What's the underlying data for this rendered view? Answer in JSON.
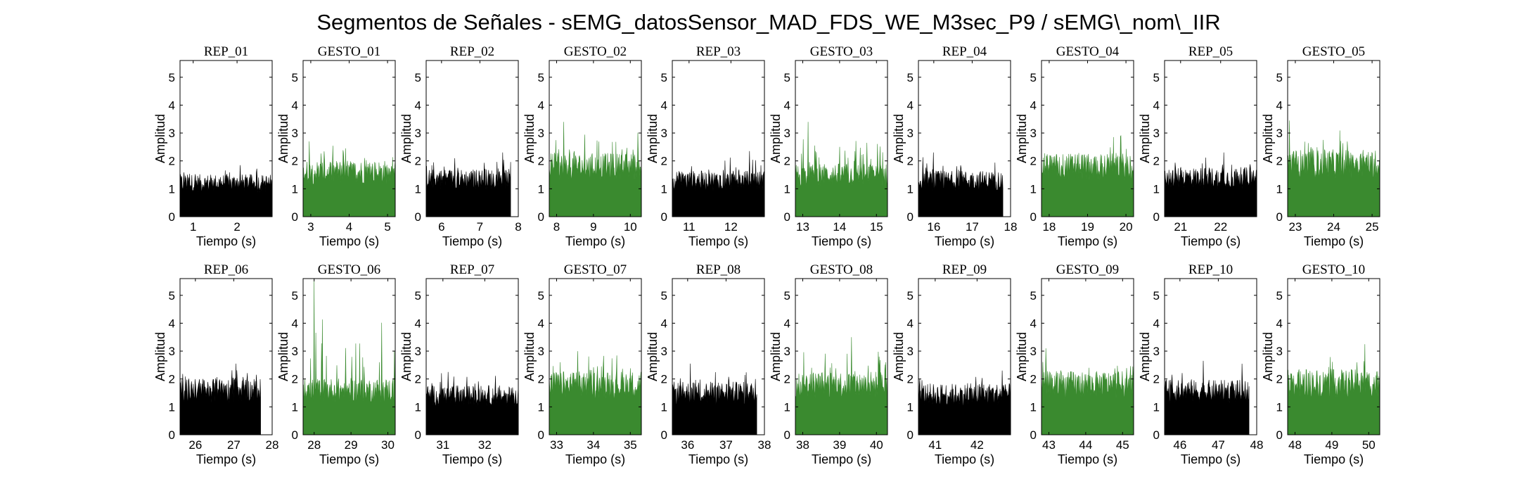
{
  "figure": {
    "title": "Segmentos de Señales - sEMG_datosSensor_MAD_FDS_WE_M3sec_P9 / sEMG\\_nom\\_IIR"
  },
  "colors": {
    "rep": "#000000",
    "gesto": "#3a8a2f"
  },
  "chart_data": [
    {
      "type": "area",
      "title": "REP_01",
      "kind": "rep",
      "xlabel": "Tiempo (s)",
      "ylabel": "Amplitud",
      "xlim": [
        0.7,
        2.8
      ],
      "ylim": [
        0,
        5.6
      ],
      "xticks": [
        1,
        2
      ],
      "yticks": [
        0,
        1,
        2,
        3,
        4,
        5
      ],
      "x_range": [
        0.7,
        2.8
      ],
      "baseline_level": 1.2,
      "peak": 1.85
    },
    {
      "type": "area",
      "title": "GESTO_01",
      "kind": "gesto",
      "xlabel": "Tiempo (s)",
      "ylabel": "Amplitud",
      "xlim": [
        2.8,
        5.2
      ],
      "ylim": [
        0,
        5.6
      ],
      "xticks": [
        3,
        4,
        5
      ],
      "yticks": [
        0,
        1,
        2,
        3,
        4,
        5
      ],
      "x_range": [
        2.8,
        5.2
      ],
      "baseline_level": 1.6,
      "peak": 2.7
    },
    {
      "type": "area",
      "title": "REP_02",
      "kind": "rep",
      "xlabel": "Tiempo (s)",
      "ylabel": "Amplitud",
      "xlim": [
        5.6,
        8
      ],
      "ylim": [
        0,
        5.6
      ],
      "xticks": [
        6,
        7,
        8
      ],
      "yticks": [
        0,
        1,
        2,
        3,
        4,
        5
      ],
      "x_range": [
        5.6,
        7.8
      ],
      "baseline_level": 1.35,
      "peak": 2.3
    },
    {
      "type": "area",
      "title": "GESTO_02",
      "kind": "gesto",
      "xlabel": "Tiempo (s)",
      "ylabel": "Amplitud",
      "xlim": [
        7.8,
        10.3
      ],
      "ylim": [
        0,
        5.6
      ],
      "xticks": [
        8,
        9,
        10
      ],
      "yticks": [
        0,
        1,
        2,
        3,
        4,
        5
      ],
      "x_range": [
        7.8,
        10.3
      ],
      "baseline_level": 1.8,
      "peak": 3.4
    },
    {
      "type": "area",
      "title": "REP_03",
      "kind": "rep",
      "xlabel": "Tiempo (s)",
      "ylabel": "Amplitud",
      "xlim": [
        10.6,
        12.8
      ],
      "ylim": [
        0,
        5.6
      ],
      "xticks": [
        11,
        12
      ],
      "yticks": [
        0,
        1,
        2,
        3,
        4,
        5
      ],
      "x_range": [
        10.6,
        12.8
      ],
      "baseline_level": 1.3,
      "peak": 2.35
    },
    {
      "type": "area",
      "title": "GESTO_03",
      "kind": "gesto",
      "xlabel": "Tiempo (s)",
      "ylabel": "Amplitud",
      "xlim": [
        12.8,
        15.3
      ],
      "ylim": [
        0,
        5.6
      ],
      "xticks": [
        13,
        14,
        15
      ],
      "yticks": [
        0,
        1,
        2,
        3,
        4,
        5
      ],
      "x_range": [
        12.8,
        15.3
      ],
      "baseline_level": 1.5,
      "peak": 3.4
    },
    {
      "type": "area",
      "title": "REP_04",
      "kind": "rep",
      "xlabel": "Tiempo (s)",
      "ylabel": "Amplitud",
      "xlim": [
        15.6,
        18
      ],
      "ylim": [
        0,
        5.6
      ],
      "xticks": [
        16,
        17,
        18
      ],
      "yticks": [
        0,
        1,
        2,
        3,
        4,
        5
      ],
      "x_range": [
        15.6,
        17.8
      ],
      "baseline_level": 1.3,
      "peak": 2.3
    },
    {
      "type": "area",
      "title": "GESTO_04",
      "kind": "gesto",
      "xlabel": "Tiempo (s)",
      "ylabel": "Amplitud",
      "xlim": [
        17.8,
        20.2
      ],
      "ylim": [
        0,
        5.6
      ],
      "xticks": [
        18,
        19,
        20
      ],
      "yticks": [
        0,
        1,
        2,
        3,
        4,
        5
      ],
      "x_range": [
        17.8,
        20.2
      ],
      "baseline_level": 1.8,
      "peak": 2.9
    },
    {
      "type": "area",
      "title": "REP_05",
      "kind": "rep",
      "xlabel": "Tiempo (s)",
      "ylabel": "Amplitud",
      "xlim": [
        20.6,
        22.9
      ],
      "ylim": [
        0,
        5.6
      ],
      "xticks": [
        21,
        22
      ],
      "yticks": [
        0,
        1,
        2,
        3,
        4,
        5
      ],
      "x_range": [
        20.6,
        22.9
      ],
      "baseline_level": 1.4,
      "peak": 2.3
    },
    {
      "type": "area",
      "title": "GESTO_05",
      "kind": "gesto",
      "xlabel": "Tiempo (s)",
      "ylabel": "Amplitud",
      "xlim": [
        22.8,
        25.2
      ],
      "ylim": [
        0,
        5.6
      ],
      "xticks": [
        23,
        24,
        25
      ],
      "yticks": [
        0,
        1,
        2,
        3,
        4,
        5
      ],
      "x_range": [
        22.8,
        25.2
      ],
      "baseline_level": 1.9,
      "peak": 3.45
    },
    {
      "type": "area",
      "title": "REP_06",
      "kind": "rep",
      "xlabel": "Tiempo (s)",
      "ylabel": "Amplitud",
      "xlim": [
        25.6,
        28
      ],
      "ylim": [
        0,
        5.6
      ],
      "xticks": [
        26,
        27,
        28
      ],
      "yticks": [
        0,
        1,
        2,
        3,
        4,
        5
      ],
      "x_range": [
        25.6,
        27.7
      ],
      "baseline_level": 1.6,
      "peak": 2.55
    },
    {
      "type": "area",
      "title": "GESTO_06",
      "kind": "gesto",
      "xlabel": "Tiempo (s)",
      "ylabel": "Amplitud",
      "xlim": [
        27.7,
        30.2
      ],
      "ylim": [
        0,
        5.6
      ],
      "xticks": [
        28,
        29,
        30
      ],
      "yticks": [
        0,
        1,
        2,
        3,
        4,
        5
      ],
      "x_range": [
        27.7,
        30.2
      ],
      "baseline_level": 1.6,
      "peak": 5.6
    },
    {
      "type": "area",
      "title": "REP_07",
      "kind": "rep",
      "xlabel": "Tiempo (s)",
      "ylabel": "Amplitud",
      "xlim": [
        30.6,
        32.8
      ],
      "ylim": [
        0,
        5.6
      ],
      "xticks": [
        31,
        32
      ],
      "yticks": [
        0,
        1,
        2,
        3,
        4,
        5
      ],
      "x_range": [
        30.6,
        32.8
      ],
      "baseline_level": 1.4,
      "peak": 2.25
    },
    {
      "type": "area",
      "title": "GESTO_07",
      "kind": "gesto",
      "xlabel": "Tiempo (s)",
      "ylabel": "Amplitud",
      "xlim": [
        32.8,
        35.3
      ],
      "ylim": [
        0,
        5.6
      ],
      "xticks": [
        33,
        34,
        35
      ],
      "yticks": [
        0,
        1,
        2,
        3,
        4,
        5
      ],
      "x_range": [
        32.8,
        35.3
      ],
      "baseline_level": 1.8,
      "peak": 3.0
    },
    {
      "type": "area",
      "title": "REP_08",
      "kind": "rep",
      "xlabel": "Tiempo (s)",
      "ylabel": "Amplitud",
      "xlim": [
        35.6,
        38
      ],
      "ylim": [
        0,
        5.6
      ],
      "xticks": [
        36,
        37,
        38
      ],
      "yticks": [
        0,
        1,
        2,
        3,
        4,
        5
      ],
      "x_range": [
        35.6,
        37.8
      ],
      "baseline_level": 1.5,
      "peak": 2.55
    },
    {
      "type": "area",
      "title": "GESTO_08",
      "kind": "gesto",
      "xlabel": "Tiempo (s)",
      "ylabel": "Amplitud",
      "xlim": [
        37.8,
        40.3
      ],
      "ylim": [
        0,
        5.6
      ],
      "xticks": [
        38,
        39,
        40
      ],
      "yticks": [
        0,
        1,
        2,
        3,
        4,
        5
      ],
      "x_range": [
        37.8,
        40.3
      ],
      "baseline_level": 1.8,
      "peak": 3.5
    },
    {
      "type": "area",
      "title": "REP_09",
      "kind": "rep",
      "xlabel": "Tiempo (s)",
      "ylabel": "Amplitud",
      "xlim": [
        40.6,
        42.8
      ],
      "ylim": [
        0,
        5.6
      ],
      "xticks": [
        41,
        42
      ],
      "yticks": [
        0,
        1,
        2,
        3,
        4,
        5
      ],
      "x_range": [
        40.6,
        42.8
      ],
      "baseline_level": 1.45,
      "peak": 2.3
    },
    {
      "type": "area",
      "title": "GESTO_09",
      "kind": "gesto",
      "xlabel": "Tiempo (s)",
      "ylabel": "Amplitud",
      "xlim": [
        42.8,
        45.3
      ],
      "ylim": [
        0,
        5.6
      ],
      "xticks": [
        43,
        44,
        45
      ],
      "yticks": [
        0,
        1,
        2,
        3,
        4,
        5
      ],
      "x_range": [
        42.8,
        45.3
      ],
      "baseline_level": 1.8,
      "peak": 3.1
    },
    {
      "type": "area",
      "title": "REP_10",
      "kind": "rep",
      "xlabel": "Tiempo (s)",
      "ylabel": "Amplitud",
      "xlim": [
        45.6,
        48
      ],
      "ylim": [
        0,
        5.6
      ],
      "xticks": [
        46,
        47,
        48
      ],
      "yticks": [
        0,
        1,
        2,
        3,
        4,
        5
      ],
      "x_range": [
        45.6,
        47.8
      ],
      "baseline_level": 1.55,
      "peak": 2.65
    },
    {
      "type": "area",
      "title": "GESTO_10",
      "kind": "gesto",
      "xlabel": "Tiempo (s)",
      "ylabel": "Amplitud",
      "xlim": [
        47.8,
        50.3
      ],
      "ylim": [
        0,
        5.6
      ],
      "xticks": [
        48,
        49,
        50
      ],
      "yticks": [
        0,
        1,
        2,
        3,
        4,
        5
      ],
      "x_range": [
        47.8,
        50.3
      ],
      "baseline_level": 1.85,
      "peak": 3.25
    }
  ]
}
